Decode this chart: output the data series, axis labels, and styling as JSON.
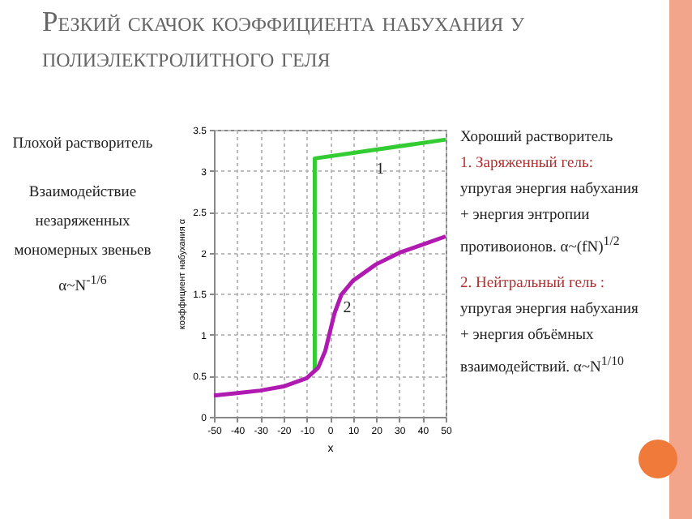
{
  "chart_data": {
    "type": "line",
    "title": "Резкий скачок коэффициента набухания у полиэлектролитного геля",
    "xlabel": "x",
    "ylabel": "коэффициент набухания α",
    "series": [
      {
        "name": "1",
        "color": "#33cc33",
        "x": [
          -6.5,
          -6.5,
          50
        ],
        "values": [
          0.55,
          3.15,
          3.38
        ]
      },
      {
        "name": "2",
        "color": "#b01ab0",
        "x": [
          -50,
          -40,
          -30,
          -20,
          -10,
          -5,
          -2,
          0,
          2,
          5,
          10,
          20,
          30,
          40,
          50
        ],
        "values": [
          0.26,
          0.29,
          0.32,
          0.37,
          0.47,
          0.6,
          0.8,
          1.03,
          1.26,
          1.49,
          1.66,
          1.86,
          2.0,
          2.1,
          2.2
        ]
      }
    ],
    "xlim": [
      -50,
      50
    ],
    "xticks": [
      -50,
      -40,
      -30,
      -20,
      -10,
      0,
      10,
      20,
      30,
      40,
      50
    ],
    "ylim": [
      0,
      3.5
    ],
    "yticks": [
      0,
      0.5,
      1,
      1.5,
      2,
      2.5,
      3,
      3.5
    ],
    "grid": true,
    "marker": "none",
    "line_style": "solid",
    "annotations": [
      "Плохой растворитель",
      "Взаимодействие",
      "незаряженных",
      "мономерных звеньев",
      "α~N$^{-1/6}$",
      "Хороший растворитель",
      "1. Заряженный гель:",
      "упругая энергия  набухания",
      "+ энергия энтропии",
      "противоионов. α~(fN)$^{1/2}$",
      "2. Нейтральный гель :",
      "упругая энергия набухания",
      "+ энергия объёмных",
      "взаимодействий.    α~N$^{1/10}$"
    ]
  }
}
